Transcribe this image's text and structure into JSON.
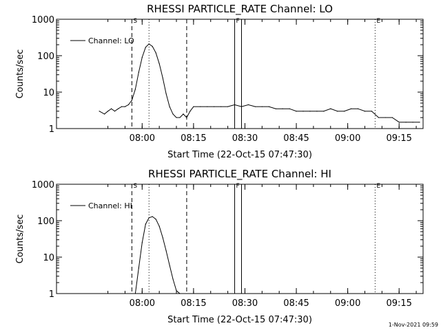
{
  "footer": {
    "timestamp": "1-Nov-2021 09:59"
  },
  "colors": {
    "background": "#ffffff",
    "foreground": "#000000"
  },
  "chart_data": [
    {
      "type": "line",
      "title": "RHESSI PARTICLE_RATE Channel: LO",
      "xlabel": "Start Time (22-Oct-15 07:47:30)",
      "ylabel": "Counts/sec",
      "yscale": "log",
      "ylim": [
        1,
        1000
      ],
      "xlim_minutes": [
        -12.5,
        94.5
      ],
      "x_ticks": [
        "08:00",
        "08:15",
        "08:30",
        "08:45",
        "09:00",
        "09:15"
      ],
      "y_ticks": [
        "1",
        "10",
        "100",
        "1000"
      ],
      "legend": {
        "position": "top-left",
        "entries": [
          "Channel: LO"
        ]
      },
      "markers": [
        {
          "label": "S",
          "time": "07:57",
          "style": "dashed"
        },
        {
          "label": "",
          "time": "08:02",
          "style": "dotted"
        },
        {
          "label": "",
          "time": "08:13",
          "style": "dashed"
        },
        {
          "label": "F",
          "time": "08:27",
          "style": "solid"
        },
        {
          "label": "",
          "time": "08:29",
          "style": "solid"
        },
        {
          "label": "E",
          "time": "09:08",
          "style": "dotted"
        },
        {
          "label": "",
          "time": "09:22",
          "style": "dotted"
        }
      ],
      "series": [
        {
          "name": "Channel: LO",
          "x": [
            "07:47:30",
            "07:49",
            "07:50",
            "07:51",
            "07:52",
            "07:53",
            "07:54",
            "07:55",
            "07:56",
            "07:57",
            "07:58",
            "07:59",
            "08:00",
            "08:01",
            "08:02",
            "08:03",
            "08:04",
            "08:05",
            "08:06",
            "08:07",
            "08:08",
            "08:09",
            "08:10",
            "08:11",
            "08:12",
            "08:13",
            "08:14",
            "08:15",
            "08:17",
            "08:19",
            "08:21",
            "08:23",
            "08:25",
            "08:27",
            "08:29",
            "08:31",
            "08:33",
            "08:35",
            "08:37",
            "08:39",
            "08:41",
            "08:43",
            "08:45",
            "08:47",
            "08:49",
            "08:51",
            "08:53",
            "08:55",
            "08:57",
            "08:59",
            "09:01",
            "09:03",
            "09:05",
            "09:07",
            "09:09",
            "09:11",
            "09:13",
            "09:15",
            "09:17",
            "09:19",
            "09:21"
          ],
          "values": [
            3,
            2.5,
            3,
            3.5,
            3,
            3.5,
            4,
            4,
            4.5,
            6,
            12,
            35,
            90,
            170,
            210,
            180,
            120,
            60,
            25,
            9,
            4,
            2.5,
            2,
            2,
            2.5,
            2,
            3,
            4,
            4,
            4,
            4,
            4,
            4,
            4.5,
            4,
            4.5,
            4,
            4,
            4,
            3.5,
            3.5,
            3.5,
            3,
            3,
            3,
            3,
            3,
            3.5,
            3,
            3,
            3.5,
            3.5,
            3,
            3,
            2,
            2,
            2,
            1.5,
            1.5,
            1.5,
            1.5
          ]
        }
      ]
    },
    {
      "type": "line",
      "title": "RHESSI PARTICLE_RATE Channel: HI",
      "xlabel": "Start Time (22-Oct-15 07:47:30)",
      "ylabel": "Counts/sec",
      "yscale": "log",
      "ylim": [
        1,
        1000
      ],
      "xlim_minutes": [
        -12.5,
        94.5
      ],
      "x_ticks": [
        "08:00",
        "08:15",
        "08:30",
        "08:45",
        "09:00",
        "09:15"
      ],
      "y_ticks": [
        "1",
        "10",
        "100",
        "1000"
      ],
      "legend": {
        "position": "top-left",
        "entries": [
          "Channel: HI"
        ]
      },
      "markers": [
        {
          "label": "S",
          "time": "07:57",
          "style": "dashed"
        },
        {
          "label": "",
          "time": "08:02",
          "style": "dotted"
        },
        {
          "label": "",
          "time": "08:13",
          "style": "dashed"
        },
        {
          "label": "F",
          "time": "08:27",
          "style": "solid"
        },
        {
          "label": "",
          "time": "08:29",
          "style": "solid"
        },
        {
          "label": "E",
          "time": "09:08",
          "style": "dotted"
        },
        {
          "label": "",
          "time": "09:22",
          "style": "dotted"
        }
      ],
      "series": [
        {
          "name": "Channel: HI",
          "x": [
            "07:58",
            "07:59",
            "08:00",
            "08:01",
            "08:02",
            "08:03",
            "08:04",
            "08:05",
            "08:06",
            "08:07",
            "08:08",
            "08:09",
            "08:10",
            "08:11"
          ],
          "values": [
            1,
            5,
            25,
            80,
            120,
            130,
            110,
            70,
            35,
            15,
            6,
            2.5,
            1.2,
            1
          ]
        }
      ]
    }
  ]
}
